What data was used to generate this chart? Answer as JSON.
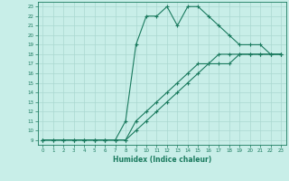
{
  "xlabel": "Humidex (Indice chaleur)",
  "xlim": [
    -0.5,
    23.5
  ],
  "ylim": [
    8.5,
    23.5
  ],
  "xticks": [
    0,
    1,
    2,
    3,
    4,
    5,
    6,
    7,
    8,
    9,
    10,
    11,
    12,
    13,
    14,
    15,
    16,
    17,
    18,
    19,
    20,
    21,
    22,
    23
  ],
  "yticks": [
    9,
    10,
    11,
    12,
    13,
    14,
    15,
    16,
    17,
    18,
    19,
    20,
    21,
    22,
    23
  ],
  "line_color": "#1a7a5e",
  "bg_color": "#c8eee8",
  "grid_color": "#aad8d0",
  "line1_x": [
    0,
    1,
    2,
    3,
    4,
    5,
    6,
    7,
    8,
    9,
    10,
    11,
    12,
    13,
    14,
    15,
    16,
    17,
    18,
    19,
    20,
    21,
    22,
    23
  ],
  "line1_y": [
    9,
    9,
    9,
    9,
    9,
    9,
    9,
    9,
    9,
    10,
    11,
    12,
    13,
    14,
    15,
    16,
    17,
    17,
    17,
    18,
    18,
    18,
    18,
    18
  ],
  "line2_x": [
    0,
    1,
    2,
    3,
    4,
    5,
    6,
    7,
    8,
    9,
    10,
    11,
    12,
    13,
    14,
    15,
    16,
    17,
    18,
    19,
    20,
    21,
    22,
    23
  ],
  "line2_y": [
    9,
    9,
    9,
    9,
    9,
    9,
    9,
    9,
    9,
    11,
    12,
    13,
    14,
    15,
    16,
    17,
    17,
    18,
    18,
    18,
    18,
    18,
    18,
    18
  ],
  "line3_x": [
    0,
    3,
    4,
    5,
    6,
    7,
    8,
    9,
    10,
    11,
    12,
    13,
    14,
    15,
    16,
    17,
    18,
    19,
    20,
    21,
    22,
    23
  ],
  "line3_y": [
    9,
    9,
    9,
    9,
    9,
    9,
    11,
    19,
    22,
    22,
    23,
    21,
    23,
    23,
    22,
    21,
    20,
    19,
    19,
    19,
    18,
    18
  ]
}
